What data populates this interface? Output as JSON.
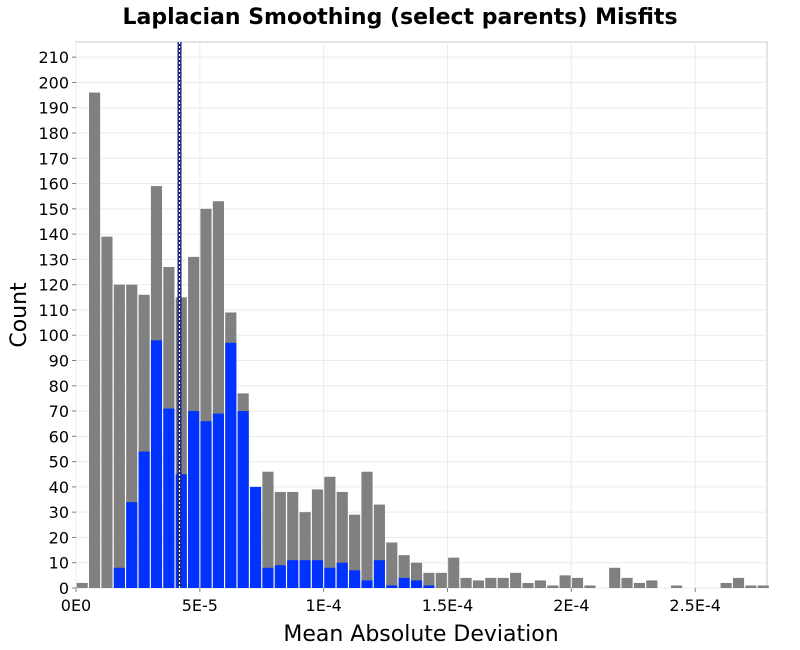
{
  "chart_data": {
    "type": "bar",
    "title": "Laplacian Smoothing (select parents) Misfits",
    "xlabel": "Mean Absolute Deviation",
    "ylabel": "Count",
    "xlim": [
      0,
      0.000279
    ],
    "ylim": [
      0,
      216
    ],
    "grid": true,
    "legend": "none",
    "bin_width": 4.5e-06,
    "x_ticks": [
      {
        "value": 0,
        "label": "0E0"
      },
      {
        "value": 5e-05,
        "label": "5E-5"
      },
      {
        "value": 0.0001,
        "label": "1E-4"
      },
      {
        "value": 0.00015,
        "label": "1.5E-4"
      },
      {
        "value": 0.0002,
        "label": "2E-4"
      },
      {
        "value": 0.00025,
        "label": "2.5E-4"
      }
    ],
    "y_ticks": [
      "0",
      "10",
      "20",
      "30",
      "40",
      "50",
      "60",
      "70",
      "80",
      "90",
      "100",
      "110",
      "120",
      "130",
      "140",
      "150",
      "160",
      "170",
      "180",
      "190",
      "200",
      "210"
    ],
    "series": [
      {
        "color": "#808080",
        "x": [
          2.5e-06,
          7.5e-06,
          1.25e-05,
          1.75e-05,
          2.25e-05,
          2.75e-05,
          3.25e-05,
          3.75e-05,
          4.25e-05,
          4.75e-05,
          5.25e-05,
          5.75e-05,
          6.25e-05,
          6.75e-05,
          7.25e-05,
          7.75e-05,
          8.25e-05,
          8.75e-05,
          9.25e-05,
          9.75e-05,
          0.0001025,
          0.0001075,
          0.0001125,
          0.0001175,
          0.0001225,
          0.0001275,
          0.0001325,
          0.0001375,
          0.0001425,
          0.0001475,
          0.0001525,
          0.0001575,
          0.0001625,
          0.0001675,
          0.0001725,
          0.0001775,
          0.0001825,
          0.0001875,
          0.0001925,
          0.0001975,
          0.0002025,
          0.0002075,
          0.0002125,
          0.0002175,
          0.0002225,
          0.0002275,
          0.0002325,
          0.0002375,
          0.0002425,
          0.0002475,
          0.0002525,
          0.0002575,
          0.0002625,
          0.0002675,
          0.0002725,
          0.0002775
        ],
        "values": [
          2,
          196,
          139,
          120,
          120,
          116,
          159,
          127,
          115,
          131,
          150,
          153,
          109,
          77,
          31,
          46,
          38,
          38,
          30,
          39,
          44,
          38,
          29,
          46,
          33,
          18,
          13,
          10,
          6,
          6,
          12,
          4,
          3,
          4,
          4,
          6,
          2,
          3,
          1,
          5,
          4,
          1,
          0,
          8,
          4,
          2,
          3,
          0,
          1,
          0,
          0,
          0,
          2,
          4,
          1,
          1
        ]
      },
      {
        "color": "#0033ff",
        "x": [
          1.75e-05,
          2.25e-05,
          2.75e-05,
          3.25e-05,
          3.75e-05,
          4.25e-05,
          4.75e-05,
          5.25e-05,
          5.75e-05,
          6.25e-05,
          6.75e-05,
          7.25e-05,
          7.75e-05,
          8.25e-05,
          8.75e-05,
          9.25e-05,
          9.75e-05,
          0.0001025,
          0.0001075,
          0.0001125,
          0.0001175,
          0.0001225,
          0.0001275,
          0.0001325,
          0.0001375,
          0.0001425,
          0.0001475,
          0.0001525
        ],
        "values": [
          8,
          34,
          54,
          98,
          71,
          45,
          70,
          66,
          69,
          97,
          70,
          40,
          8,
          9,
          11,
          11,
          11,
          8,
          10,
          7,
          3,
          11,
          1,
          4,
          3,
          1,
          0,
          0
        ]
      }
    ],
    "annotations": [
      {
        "type": "vertical_line",
        "x": 4.18e-05,
        "style": "dotted",
        "color": "#1a237e"
      }
    ]
  }
}
